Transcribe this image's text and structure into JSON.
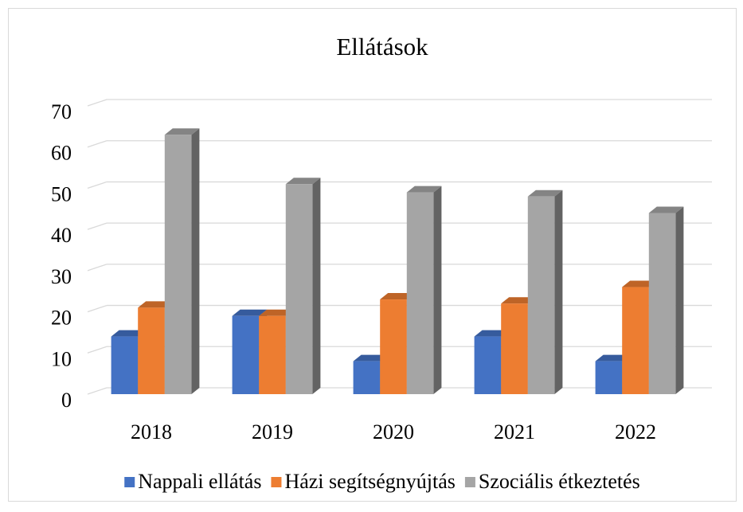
{
  "chart_data": {
    "type": "bar3d",
    "title": "Ellátások",
    "categories": [
      "2018",
      "2019",
      "2020",
      "2021",
      "2022"
    ],
    "series": [
      {
        "name": "Nappali ellátás",
        "color": "#4472c4",
        "values": [
          14,
          19,
          8,
          14,
          8
        ]
      },
      {
        "name": "Házi segítségnyújtás",
        "color": "#ed7d31",
        "values": [
          21,
          19,
          23,
          22,
          26
        ]
      },
      {
        "name": "Szociális étkeztetés",
        "color": "#a5a5a5",
        "values": [
          63,
          51,
          49,
          48,
          44
        ]
      }
    ],
    "ylim": [
      0,
      70
    ],
    "yticks": [
      0,
      10,
      20,
      30,
      40,
      50,
      60,
      70
    ],
    "grid": true,
    "legend": "bottom"
  }
}
